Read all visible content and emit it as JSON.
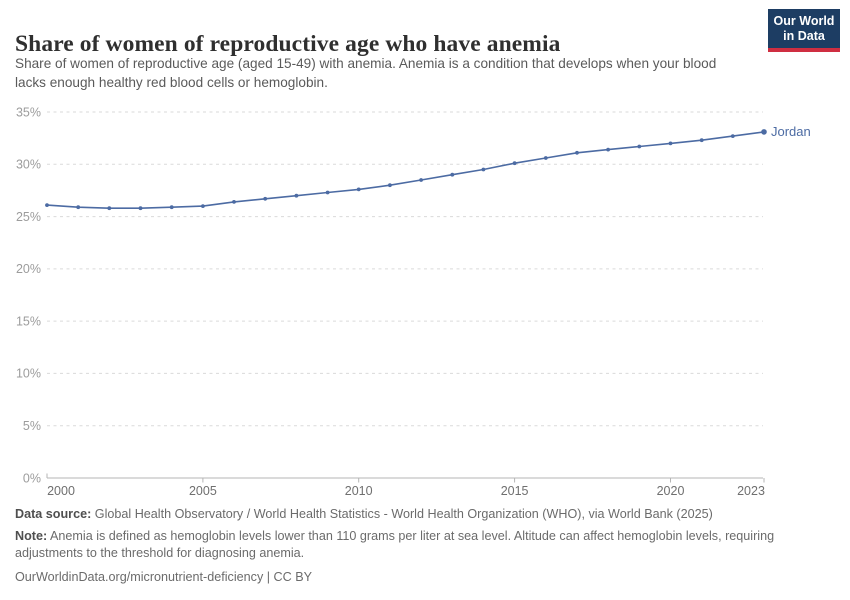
{
  "header": {
    "title": "Share of women of reproductive age who have anemia",
    "subtitle": "Share of women of reproductive age (aged 15-49) with anemia. Anemia is a condition that develops when your blood lacks enough healthy red blood cells or hemoglobin.",
    "logo": {
      "line1": "Our World",
      "line2": "in Data",
      "navy": "#1d3d63",
      "red": "#cf2e41"
    }
  },
  "chart_data": {
    "type": "line",
    "title": "Share of women of reproductive age who have anemia",
    "x": [
      2000,
      2001,
      2002,
      2003,
      2004,
      2005,
      2006,
      2007,
      2008,
      2009,
      2010,
      2011,
      2012,
      2013,
      2014,
      2015,
      2016,
      2017,
      2018,
      2019,
      2020,
      2021,
      2022,
      2023
    ],
    "series": [
      {
        "name": "Jordan",
        "color": "#4c6ba3",
        "values": [
          26.1,
          25.9,
          25.8,
          25.8,
          25.9,
          26.0,
          26.4,
          26.7,
          27.0,
          27.3,
          27.6,
          28.0,
          28.5,
          29.0,
          29.5,
          30.1,
          30.6,
          31.1,
          31.4,
          31.7,
          32.0,
          32.3,
          32.7,
          33.1
        ]
      }
    ],
    "xlabel": "",
    "ylabel": "",
    "xlim": [
      2000,
      2023
    ],
    "ylim": [
      0,
      35
    ],
    "x_ticks": [
      2000,
      2005,
      2010,
      2015,
      2020,
      2023
    ],
    "y_ticks": [
      0,
      5,
      10,
      15,
      20,
      25,
      30,
      35
    ],
    "y_tick_suffix": "%",
    "grid": "horizontal-dashed",
    "legend_position": "end-of-line",
    "colors": {
      "grid": "#dadada",
      "axis": "#b5b5b5",
      "y_tick_label": "#9c9c9c",
      "x_tick_label": "#6f6f6f"
    }
  },
  "footer": {
    "data_source_label": "Data source:",
    "data_source": "Global Health Observatory / World Health Statistics - World Health Organization (WHO), via World Bank (2025)",
    "note_label": "Note:",
    "note": "Anemia is defined as hemoglobin levels lower than 110 grams per liter at sea level. Altitude can affect hemoglobin levels, requiring adjustments to the threshold for diagnosing anemia.",
    "url": "OurWorldinData.org/micronutrient-deficiency | CC BY"
  }
}
